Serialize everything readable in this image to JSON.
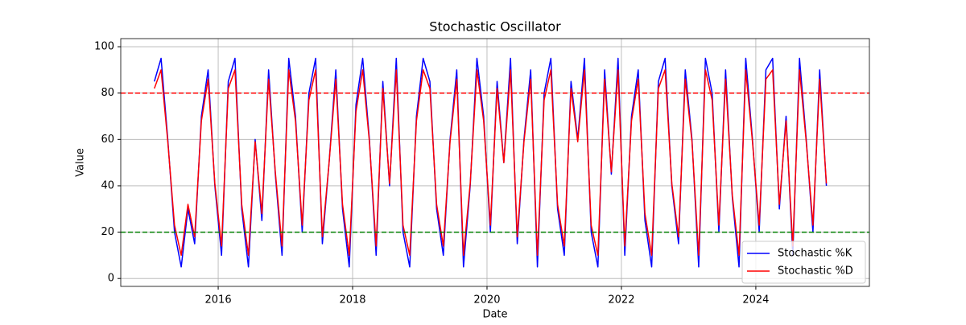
{
  "chart_data": {
    "type": "line",
    "title": "Stochastic Oscillator",
    "x_label": "Date",
    "y_label": "Value",
    "x": [
      2015.05,
      2015.15,
      2015.25,
      2015.35,
      2015.45,
      2015.55,
      2015.65,
      2015.75,
      2015.85,
      2015.95,
      2016.05,
      2016.15,
      2016.25,
      2016.35,
      2016.45,
      2016.55,
      2016.65,
      2016.75,
      2016.85,
      2016.95,
      2017.05,
      2017.15,
      2017.25,
      2017.35,
      2017.45,
      2017.55,
      2017.65,
      2017.75,
      2017.85,
      2017.95,
      2018.05,
      2018.15,
      2018.25,
      2018.35,
      2018.45,
      2018.55,
      2018.65,
      2018.75,
      2018.85,
      2018.95,
      2019.05,
      2019.15,
      2019.25,
      2019.35,
      2019.45,
      2019.55,
      2019.65,
      2019.75,
      2019.85,
      2019.95,
      2020.05,
      2020.15,
      2020.25,
      2020.35,
      2020.45,
      2020.55,
      2020.65,
      2020.75,
      2020.85,
      2020.95,
      2021.05,
      2021.15,
      2021.25,
      2021.35,
      2021.45,
      2021.55,
      2021.65,
      2021.75,
      2021.85,
      2021.95,
      2022.05,
      2022.15,
      2022.25,
      2022.35,
      2022.45,
      2022.55,
      2022.65,
      2022.75,
      2022.85,
      2022.95,
      2023.05,
      2023.15,
      2023.25,
      2023.35,
      2023.45,
      2023.55,
      2023.65,
      2023.75,
      2023.85,
      2023.95,
      2024.05,
      2024.15,
      2024.25,
      2024.35,
      2024.45,
      2024.55,
      2024.65,
      2024.75,
      2024.85,
      2024.95,
      2025.05
    ],
    "series": [
      {
        "name": "Stochastic %K",
        "color": "#0000ff",
        "values": [
          85,
          95,
          60,
          20,
          5,
          30,
          15,
          70,
          90,
          40,
          10,
          85,
          95,
          30,
          5,
          60,
          25,
          90,
          45,
          10,
          95,
          70,
          20,
          80,
          95,
          15,
          50,
          90,
          30,
          5,
          75,
          95,
          60,
          10,
          85,
          40,
          95,
          20,
          5,
          70,
          95,
          85,
          30,
          10,
          60,
          90,
          5,
          40,
          95,
          70,
          20,
          85,
          50,
          95,
          15,
          60,
          90,
          5,
          80,
          95,
          30,
          10,
          85,
          60,
          95,
          20,
          5,
          90,
          45,
          95,
          10,
          70,
          90,
          25,
          5,
          85,
          95,
          40,
          15,
          90,
          60,
          5,
          95,
          80,
          20,
          90,
          35,
          5,
          95,
          60,
          20,
          90,
          95,
          30,
          70,
          10,
          95,
          60,
          20,
          90,
          40
        ]
      },
      {
        "name": "Stochastic %D",
        "color": "#ff0000",
        "values": [
          82,
          90,
          59,
          23,
          10,
          32,
          18,
          68,
          86,
          41,
          14,
          82,
          90,
          32,
          10,
          59,
          28,
          86,
          46,
          14,
          90,
          68,
          23,
          77,
          90,
          18,
          50,
          86,
          32,
          10,
          72,
          90,
          59,
          14,
          82,
          41,
          90,
          23,
          10,
          68,
          90,
          82,
          32,
          14,
          59,
          86,
          10,
          41,
          90,
          68,
          23,
          82,
          50,
          90,
          18,
          59,
          86,
          10,
          77,
          90,
          32,
          14,
          82,
          59,
          90,
          23,
          10,
          86,
          46,
          90,
          14,
          68,
          86,
          28,
          10,
          82,
          90,
          41,
          18,
          86,
          59,
          10,
          90,
          77,
          23,
          86,
          36,
          10,
          90,
          59,
          23,
          86,
          90,
          32,
          68,
          14,
          90,
          59,
          23,
          86,
          41
        ]
      }
    ],
    "hlines": [
      {
        "value": 80,
        "color": "#ff0000"
      },
      {
        "value": 20,
        "color": "#008000"
      }
    ],
    "xlim": [
      2014.55,
      2025.69
    ],
    "xticks": [
      2016,
      2018,
      2020,
      2022,
      2024
    ],
    "ylim": [
      -3.4,
      103.5
    ],
    "yticks": [
      0,
      20,
      40,
      60,
      80,
      100
    ],
    "grid": true,
    "legend": "lower right"
  }
}
